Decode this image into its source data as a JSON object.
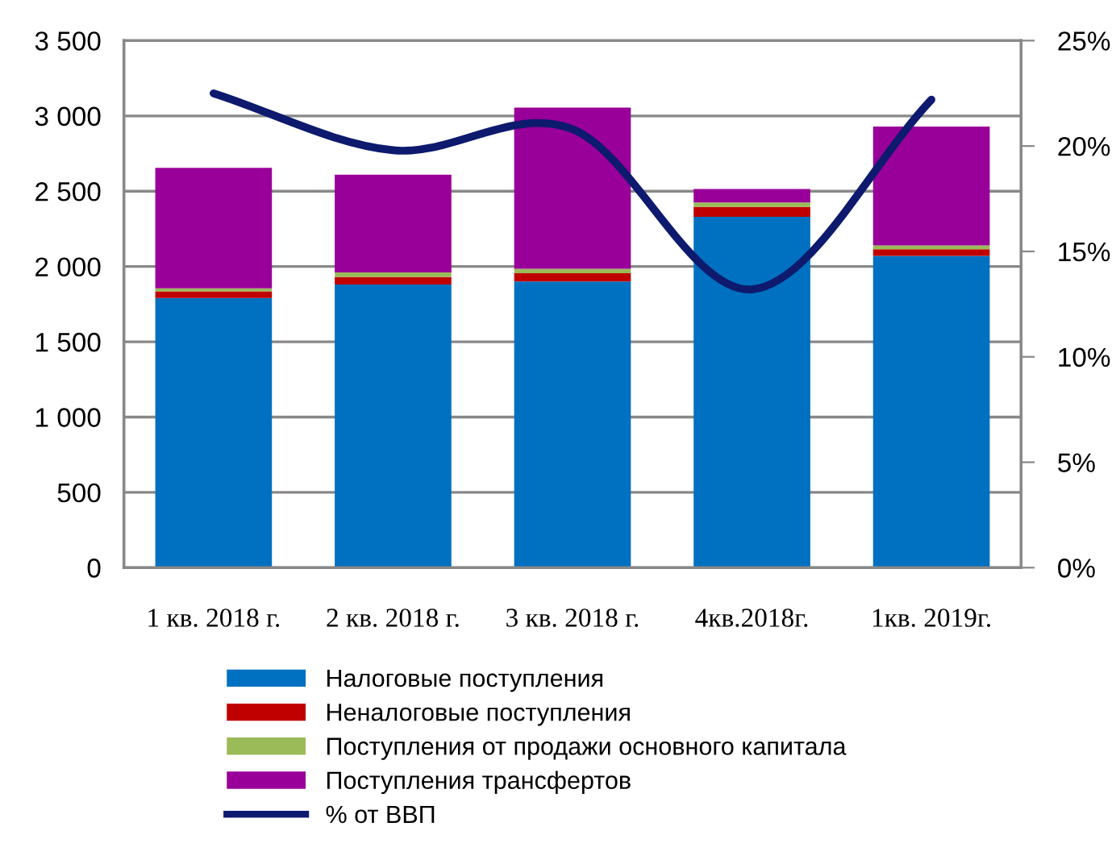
{
  "chart_data": {
    "type": "bar",
    "stacked": true,
    "categories": [
      "1 кв. 2018 г.",
      "2 кв. 2018 г.",
      "3 кв. 2018 г.",
      "4кв.2018г.",
      "1кв. 2019г."
    ],
    "series": [
      {
        "name": "Налоговые поступления",
        "color": "#0070c0",
        "values": [
          1790,
          1880,
          1900,
          2330,
          2070
        ]
      },
      {
        "name": "Неналоговые поступления",
        "color": "#c00000",
        "values": [
          45,
          50,
          55,
          65,
          45
        ]
      },
      {
        "name": "Поступления от продажи основного капитала",
        "color": "#9bbb59",
        "values": [
          20,
          30,
          30,
          30,
          25
        ]
      },
      {
        "name": "Поступления трансфертов",
        "color": "#990099",
        "values": [
          800,
          650,
          1070,
          90,
          790
        ]
      },
      {
        "name": "% от ВВП",
        "type": "line",
        "axis": "y2",
        "color": "#0d1a6e",
        "values": [
          22.5,
          19.8,
          20.8,
          13.2,
          22.2
        ]
      }
    ],
    "ylim": [
      0,
      3500
    ],
    "yticks": [
      0,
      500,
      {
        "value": 1000,
        "label": "1 000"
      },
      {
        "value": 1500,
        "label": "1 500"
      },
      {
        "value": 2000,
        "label": "2 000"
      },
      {
        "value": 2500,
        "label": "2 500"
      },
      {
        "value": 3000,
        "label": "3 000"
      },
      {
        "value": 3500,
        "label": "3 500"
      }
    ],
    "y2lim": [
      0,
      25
    ],
    "y2ticks": [
      {
        "value": 0,
        "label": "0%"
      },
      {
        "value": 5,
        "label": "5%"
      },
      {
        "value": 10,
        "label": "10%"
      },
      {
        "value": 15,
        "label": "15%"
      },
      {
        "value": 20,
        "label": "20%"
      },
      {
        "value": 25,
        "label": "25%"
      }
    ],
    "grid": "y",
    "legend": "bottom",
    "marker": "none",
    "line_style": "solid"
  }
}
